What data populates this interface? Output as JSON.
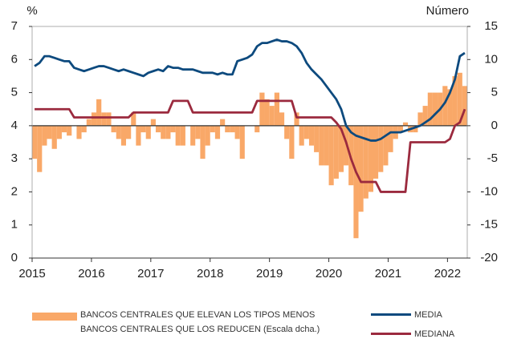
{
  "chart_data": {
    "type": "bar-line",
    "y_label": "%",
    "y2_label": "Número",
    "x": [
      2015,
      2015.083,
      2015.167,
      2015.25,
      2015.333,
      2015.417,
      2015.5,
      2015.583,
      2015.667,
      2015.75,
      2015.833,
      2015.917,
      2016,
      2016.083,
      2016.167,
      2016.25,
      2016.333,
      2016.417,
      2016.5,
      2016.583,
      2016.667,
      2016.75,
      2016.833,
      2016.917,
      2017,
      2017.083,
      2017.167,
      2017.25,
      2017.333,
      2017.417,
      2017.5,
      2017.583,
      2017.667,
      2017.75,
      2017.833,
      2017.917,
      2018,
      2018.083,
      2018.167,
      2018.25,
      2018.333,
      2018.417,
      2018.5,
      2018.583,
      2018.667,
      2018.75,
      2018.833,
      2018.917,
      2019,
      2019.083,
      2019.167,
      2019.25,
      2019.333,
      2019.417,
      2019.5,
      2019.583,
      2019.667,
      2019.75,
      2019.833,
      2019.917,
      2020,
      2020.083,
      2020.167,
      2020.25,
      2020.333,
      2020.417,
      2020.5,
      2020.583,
      2020.667,
      2020.75,
      2020.833,
      2020.917,
      2021,
      2021.083,
      2021.167,
      2021.25,
      2021.333,
      2021.417,
      2021.5,
      2021.583,
      2021.667,
      2021.75,
      2021.833,
      2021.917,
      2022,
      2022.083,
      2022.167,
      2022.25
    ],
    "xlim": [
      2015,
      2022.333
    ],
    "xticks": [
      2015,
      2016,
      2017,
      2018,
      2019,
      2020,
      2021,
      2022
    ],
    "ylim": [
      0,
      7
    ],
    "yticks": [
      0,
      1,
      2,
      3,
      4,
      5,
      6,
      7
    ],
    "y2lim": [
      -20,
      15
    ],
    "y2ticks": [
      -20,
      -15,
      -10,
      -5,
      0,
      5,
      10,
      15
    ],
    "series": [
      {
        "name": "BANCOS CENTRALES QUE ELEVAN LOS TIPOS MENOS\nBANCOS CENTRALES QUE LOS REDUCEN (Escala dcha.)",
        "kind": "bar",
        "axis": "y2",
        "color": "#f9a868",
        "values": [
          -5,
          -7,
          -3,
          -2,
          -3.5,
          -2,
          -1,
          -1.5,
          0,
          -2,
          -1,
          1,
          2,
          4,
          2,
          2,
          -1,
          -2,
          -3,
          -2,
          2,
          -3,
          -1,
          -2,
          1,
          -1,
          -2,
          -2,
          -1,
          -3,
          -3,
          0,
          -3,
          -2,
          -5,
          -3,
          -1,
          -2,
          1,
          -1,
          -1,
          -2,
          -5,
          0,
          0,
          -1,
          5,
          4,
          3,
          5,
          2,
          -2,
          -5,
          2,
          -3,
          -2,
          -3,
          -4,
          -6,
          -6,
          -9,
          -8,
          -7,
          -6,
          -9,
          -17,
          -13,
          -11,
          -10,
          -8,
          -7,
          -6,
          -4,
          -2,
          -1,
          0.5,
          -1,
          -1,
          2,
          3,
          5,
          5,
          5,
          6,
          5.5,
          7.5,
          8,
          6
        ]
      },
      {
        "name": "MEDIA",
        "kind": "line",
        "color": "#0d4a7e",
        "values": [
          5.8,
          5.9,
          6.1,
          6.1,
          6.05,
          6.0,
          5.95,
          5.95,
          5.75,
          5.7,
          5.65,
          5.7,
          5.75,
          5.8,
          5.8,
          5.75,
          5.7,
          5.65,
          5.7,
          5.65,
          5.6,
          5.55,
          5.5,
          5.6,
          5.65,
          5.7,
          5.65,
          5.8,
          5.75,
          5.75,
          5.7,
          5.7,
          5.7,
          5.65,
          5.6,
          5.6,
          5.6,
          5.55,
          5.6,
          5.55,
          5.55,
          5.95,
          6.0,
          6.05,
          6.15,
          6.4,
          6.5,
          6.5,
          6.55,
          6.6,
          6.55,
          6.55,
          6.5,
          6.4,
          6.2,
          5.9,
          5.7,
          5.55,
          5.4,
          5.2,
          5.0,
          4.8,
          4.5,
          4.0,
          3.8,
          3.7,
          3.65,
          3.6,
          3.55,
          3.55,
          3.6,
          3.7,
          3.8,
          3.8,
          3.8,
          3.85,
          3.9,
          3.95,
          4.0,
          4.1,
          4.2,
          4.35,
          4.5,
          4.7,
          5.0,
          5.4,
          6.1,
          6.2
        ]
      },
      {
        "name": "MEDIANA",
        "kind": "line",
        "color": "#9b2a3e",
        "values": [
          4.5,
          4.5,
          4.5,
          4.5,
          4.5,
          4.5,
          4.5,
          4.5,
          4.25,
          4.25,
          4.25,
          4.25,
          4.25,
          4.25,
          4.25,
          4.25,
          4.25,
          4.25,
          4.25,
          4.25,
          4.4,
          4.4,
          4.4,
          4.4,
          4.4,
          4.4,
          4.4,
          4.4,
          4.75,
          4.75,
          4.75,
          4.75,
          4.4,
          4.4,
          4.4,
          4.4,
          4.4,
          4.4,
          4.4,
          4.4,
          4.4,
          4.4,
          4.4,
          4.4,
          4.4,
          4.75,
          4.75,
          4.75,
          4.75,
          4.75,
          4.75,
          4.75,
          4.75,
          4.25,
          4.25,
          4.25,
          4.25,
          4.25,
          4.25,
          4.25,
          4.25,
          4.1,
          3.9,
          3.5,
          3.0,
          2.6,
          2.3,
          2.3,
          2.3,
          2.3,
          2.0,
          2.0,
          2.0,
          2.0,
          2.0,
          2.0,
          3.5,
          3.5,
          3.5,
          3.5,
          3.5,
          3.5,
          3.5,
          3.5,
          3.6,
          4.0,
          4.1,
          4.5
        ]
      }
    ]
  }
}
